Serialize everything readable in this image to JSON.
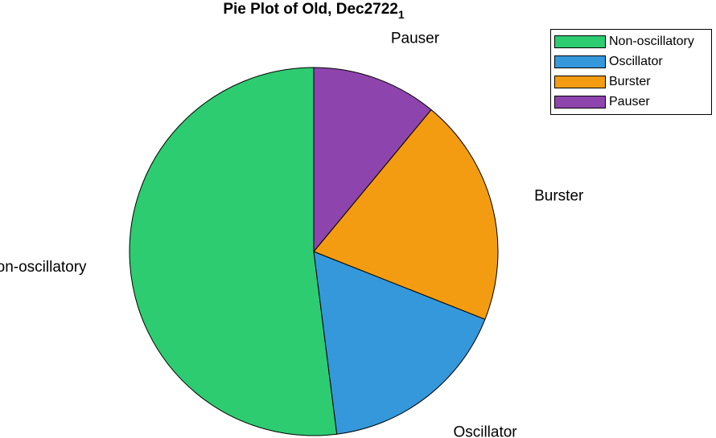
{
  "chart_data": {
    "type": "pie",
    "title": "Pie Plot of Old, Dec2722",
    "title_subscript": "1",
    "categories": [
      "Non-oscillatory",
      "Oscillator",
      "Burster",
      "Pauser"
    ],
    "values": [
      52,
      17,
      20,
      11
    ],
    "colors": [
      "#2ecc71",
      "#3498db",
      "#f39c12",
      "#8e44ad"
    ],
    "legend_position": "top-right"
  }
}
